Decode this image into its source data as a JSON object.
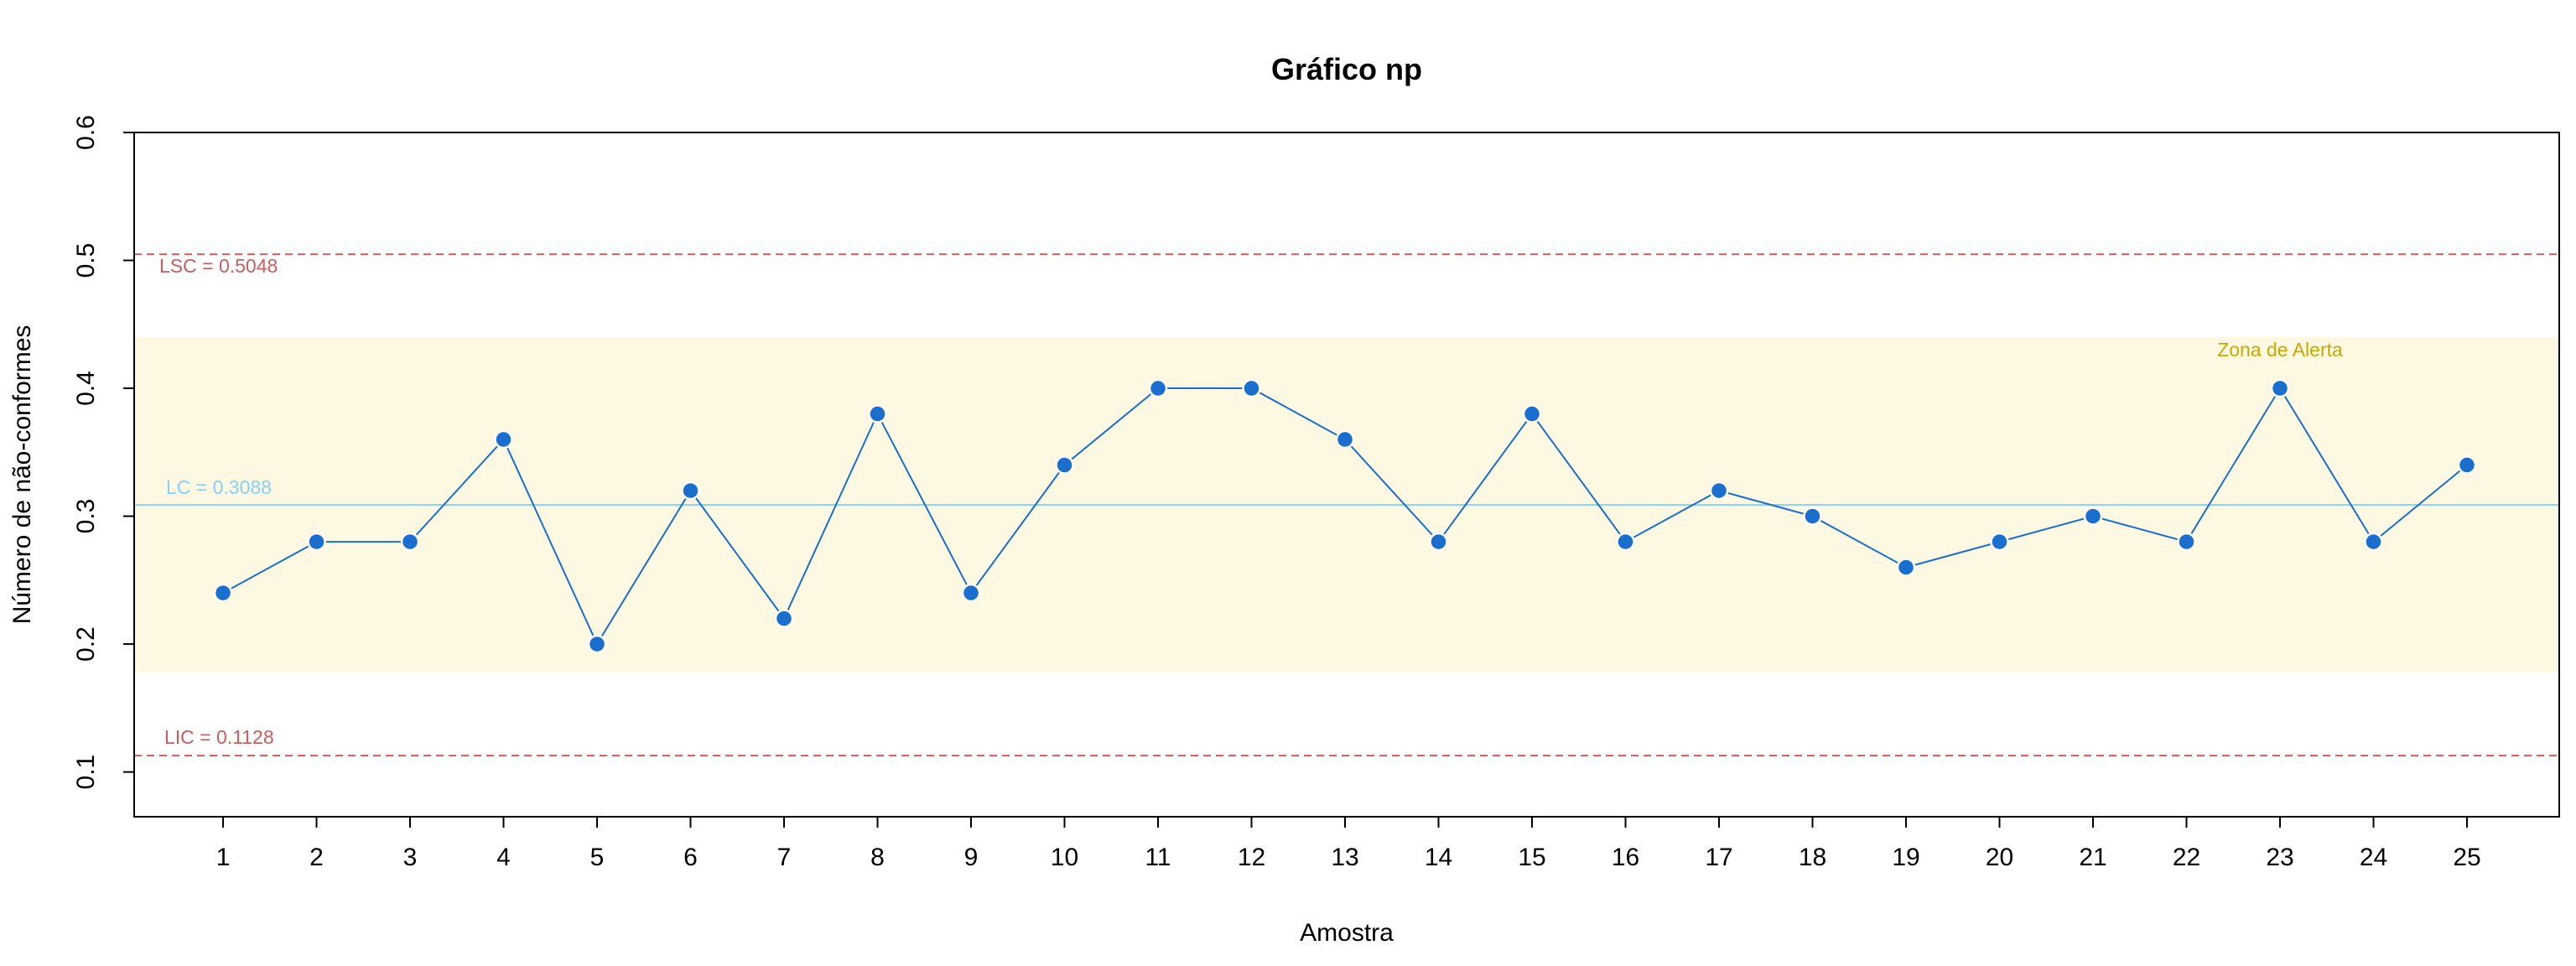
{
  "chart_data": {
    "type": "line",
    "title": "Gráfico np",
    "xlabel": "Amostra",
    "ylabel": "Número de não-conformes",
    "categories": [
      "1",
      "2",
      "3",
      "4",
      "5",
      "6",
      "7",
      "8",
      "9",
      "10",
      "11",
      "12",
      "13",
      "14",
      "15",
      "16",
      "17",
      "18",
      "19",
      "20",
      "21",
      "22",
      "23",
      "24",
      "25"
    ],
    "series": [
      {
        "values": [
          0.24,
          0.28,
          0.28,
          0.36,
          0.2,
          0.32,
          0.22,
          0.38,
          0.24,
          0.34,
          0.4,
          0.4,
          0.36,
          0.28,
          0.38,
          0.28,
          0.32,
          0.3,
          0.26,
          0.28,
          0.3,
          0.28,
          0.4,
          0.28,
          0.34
        ]
      }
    ],
    "ylim": [
      0.065,
      0.6
    ],
    "yticks": [
      0.1,
      0.2,
      0.3,
      0.4,
      0.5,
      0.6
    ],
    "ytick_labels": [
      "0.1",
      "0.2",
      "0.3",
      "0.4",
      "0.5",
      "0.6"
    ],
    "grid": false,
    "reference_lines": [
      {
        "label": "LSC = 0.5048",
        "value": 0.5048,
        "style": "dashed",
        "color": "#cd5c5c"
      },
      {
        "label": "LC = 0.3088",
        "value": 0.3088,
        "style": "solid",
        "color": "#87cefa"
      },
      {
        "label": "LIC = 0.1128",
        "value": 0.1128,
        "style": "dashed",
        "color": "#cd5c5c"
      }
    ],
    "alert_zone": {
      "label": "Zona de Alerta",
      "from": 0.178,
      "to": 0.44,
      "fill": "#fdf8e2",
      "label_color": "#c8a800"
    },
    "colors": {
      "line": "#1a6fce",
      "point": "#1a6fce"
    }
  }
}
